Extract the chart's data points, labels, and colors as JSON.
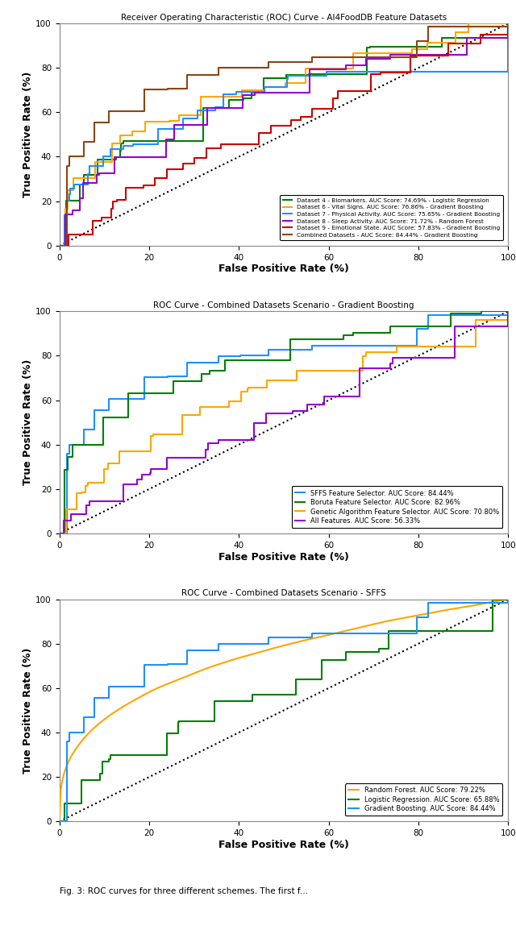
{
  "plot1": {
    "title": "Receiver Operating Characteristic (ROC) Curve - AI4FoodDB Feature Datasets",
    "xlabel": "False Positive Rate (%)",
    "ylabel": "True Positive Rate (%)",
    "curves": [
      {
        "label": "Dataset 4 - Biomarkers. AUC Score: 74.69% - Logistic Regression",
        "color": "#008000",
        "auc": 0.7469,
        "seed": 42,
        "n_steps": 25,
        "smooth": false
      },
      {
        "label": "Dataset 6 - Vital Signs. AUC Score: 76.86% - Gradient Boosting",
        "color": "#FFA500",
        "auc": 0.7686,
        "seed": 7,
        "n_steps": 28,
        "smooth": false
      },
      {
        "label": "Dataset 7 - Physical Activity. AUC Score: 75.65% - Gradient Boosting",
        "color": "#1E90FF",
        "auc": 0.7565,
        "seed": 13,
        "n_steps": 28,
        "smooth": false
      },
      {
        "label": "Dataset 8 - Sleep Activity. AUC Score: 71.72% - Random Forest",
        "color": "#9400D3",
        "auc": 0.7172,
        "seed": 17,
        "n_steps": 25,
        "smooth": false
      },
      {
        "label": "Dataset 9 - Emotional State. AUC Score: 57.83% - Gradient Boosting",
        "color": "#CC0000",
        "auc": 0.5783,
        "seed": 5,
        "n_steps": 35,
        "smooth": false
      },
      {
        "label": "Combined Datasets - AUC Score: 84.44% - Gradient Boosting",
        "color": "#8B4513",
        "auc": 0.8444,
        "seed": 3,
        "n_steps": 22,
        "smooth": false
      }
    ]
  },
  "plot2": {
    "title": "ROC Curve - Combined Datasets Scenario - Gradient Boosting",
    "xlabel": "False Positive Rate (%)",
    "ylabel": "True Positive Rate (%)",
    "curves": [
      {
        "label": "SFFS Feature Selector. AUC Score: 84.44%",
        "color": "#1E90FF",
        "auc": 0.8444,
        "seed": 3,
        "n_steps": 22,
        "smooth": false
      },
      {
        "label": "Boruta Feature Selector. AUC Score: 82.96%",
        "color": "#008000",
        "auc": 0.8296,
        "seed": 11,
        "n_steps": 22,
        "smooth": false
      },
      {
        "label": "Genetic Algorithm Feature Selector. AUC Score: 70.80%",
        "color": "#FFA500",
        "auc": 0.708,
        "seed": 19,
        "n_steps": 28,
        "smooth": false
      },
      {
        "label": "All Features. AUC Score: 56.33%",
        "color": "#9400D3",
        "auc": 0.5633,
        "seed": 23,
        "n_steps": 32,
        "smooth": false
      }
    ]
  },
  "plot3": {
    "title": "ROC Curve - Combined Datasets Scenario - SFFS",
    "xlabel": "False Positive Rate (%)",
    "ylabel": "True Positive Rate (%)",
    "curves": [
      {
        "label": "Random Forest. AUC Score: 79.22%",
        "color": "#FFA500",
        "auc": 0.7922,
        "seed": 31,
        "n_steps": 40,
        "smooth": true
      },
      {
        "label": "Logistic Regression. AUC Score: 65.88%",
        "color": "#008000",
        "auc": 0.6588,
        "seed": 37,
        "n_steps": 22,
        "smooth": false
      },
      {
        "label": "Gradient Boosting. AUC Score: 84.44%",
        "color": "#1E90FF",
        "auc": 0.8444,
        "seed": 3,
        "n_steps": 22,
        "smooth": false
      }
    ]
  },
  "fig_caption": "Fig. 3: ROC curves for three different schemes. The first f..."
}
